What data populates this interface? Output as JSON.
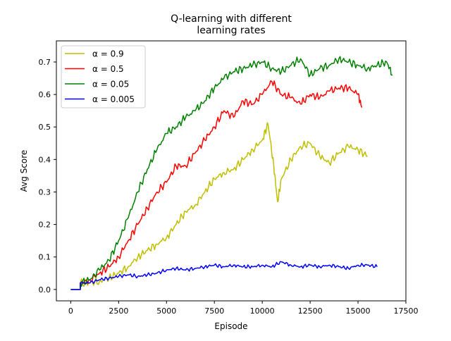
{
  "chart_data": {
    "type": "line",
    "title": "Q-learning with different\nlearning rates",
    "xlabel": "Episode",
    "ylabel": "Avg Score",
    "xlim": [
      -750,
      17500
    ],
    "ylim": [
      -0.035,
      0.765
    ],
    "xticks": [
      0,
      2500,
      5000,
      7500,
      10000,
      12500,
      15000,
      17500
    ],
    "yticks": [
      0.0,
      0.1,
      0.2,
      0.3,
      0.4,
      0.5,
      0.6,
      0.7
    ],
    "grid": false,
    "legend_position": "upper-left",
    "series": [
      {
        "name": "α = 0.9",
        "color": "#bfbf00",
        "x": [
          0,
          500,
          500,
          1000,
          1500,
          2000,
          2500,
          3000,
          3500,
          4000,
          4500,
          5000,
          5500,
          6000,
          6500,
          7000,
          7500,
          8000,
          8500,
          9000,
          9500,
          10000,
          10300,
          10600,
          10800,
          11000,
          11500,
          12000,
          12500,
          13000,
          13500,
          14000,
          14500,
          15000,
          15500
        ],
        "y": [
          0.0,
          0.0,
          0.02,
          0.02,
          0.025,
          0.035,
          0.05,
          0.07,
          0.1,
          0.12,
          0.14,
          0.16,
          0.2,
          0.24,
          0.26,
          0.3,
          0.34,
          0.36,
          0.37,
          0.4,
          0.43,
          0.46,
          0.51,
          0.38,
          0.27,
          0.34,
          0.4,
          0.44,
          0.45,
          0.41,
          0.39,
          0.42,
          0.44,
          0.43,
          0.41
        ]
      },
      {
        "name": "α = 0.5",
        "color": "#ff0000",
        "x": [
          0,
          500,
          500,
          1000,
          1500,
          2000,
          2500,
          3000,
          3500,
          4000,
          4500,
          5000,
          5500,
          6000,
          6500,
          7000,
          7500,
          8000,
          8500,
          9000,
          9500,
          10000,
          10500,
          11000,
          11500,
          12000,
          12500,
          13000,
          13500,
          14000,
          14500,
          15000,
          15200
        ],
        "y": [
          0.0,
          0.0,
          0.02,
          0.03,
          0.05,
          0.07,
          0.1,
          0.15,
          0.2,
          0.25,
          0.3,
          0.33,
          0.38,
          0.38,
          0.42,
          0.46,
          0.5,
          0.55,
          0.53,
          0.58,
          0.57,
          0.6,
          0.64,
          0.6,
          0.59,
          0.57,
          0.6,
          0.59,
          0.61,
          0.62,
          0.62,
          0.6,
          0.56
        ]
      },
      {
        "name": "α = 0.05",
        "color": "#008000",
        "x": [
          0,
          500,
          500,
          1000,
          1500,
          2000,
          2500,
          3000,
          3500,
          4000,
          4500,
          5000,
          5500,
          6000,
          6500,
          7000,
          7500,
          8000,
          8500,
          9000,
          9500,
          10000,
          10500,
          11000,
          11500,
          12000,
          12500,
          13000,
          13500,
          14000,
          14500,
          15000,
          15500,
          16000,
          16500,
          16800
        ],
        "y": [
          0.0,
          0.0,
          0.02,
          0.03,
          0.06,
          0.09,
          0.15,
          0.22,
          0.3,
          0.37,
          0.43,
          0.48,
          0.5,
          0.53,
          0.55,
          0.58,
          0.62,
          0.65,
          0.67,
          0.68,
          0.69,
          0.7,
          0.68,
          0.67,
          0.69,
          0.71,
          0.66,
          0.68,
          0.69,
          0.71,
          0.7,
          0.69,
          0.68,
          0.69,
          0.7,
          0.66
        ]
      },
      {
        "name": "α = 0.005",
        "color": "#0000ff",
        "x": [
          0,
          500,
          500,
          1000,
          1500,
          2000,
          2500,
          3000,
          3500,
          4000,
          4500,
          5000,
          5500,
          6000,
          6500,
          7000,
          7500,
          8000,
          8500,
          9000,
          9500,
          10000,
          10500,
          11000,
          11500,
          12000,
          12500,
          13000,
          13500,
          14000,
          14500,
          15000,
          15500,
          16000
        ],
        "y": [
          0.0,
          0.0,
          0.02,
          0.02,
          0.03,
          0.035,
          0.04,
          0.045,
          0.04,
          0.045,
          0.05,
          0.06,
          0.065,
          0.06,
          0.065,
          0.07,
          0.075,
          0.07,
          0.075,
          0.07,
          0.07,
          0.075,
          0.07,
          0.085,
          0.075,
          0.07,
          0.075,
          0.07,
          0.075,
          0.07,
          0.065,
          0.075,
          0.075,
          0.07
        ]
      }
    ]
  }
}
